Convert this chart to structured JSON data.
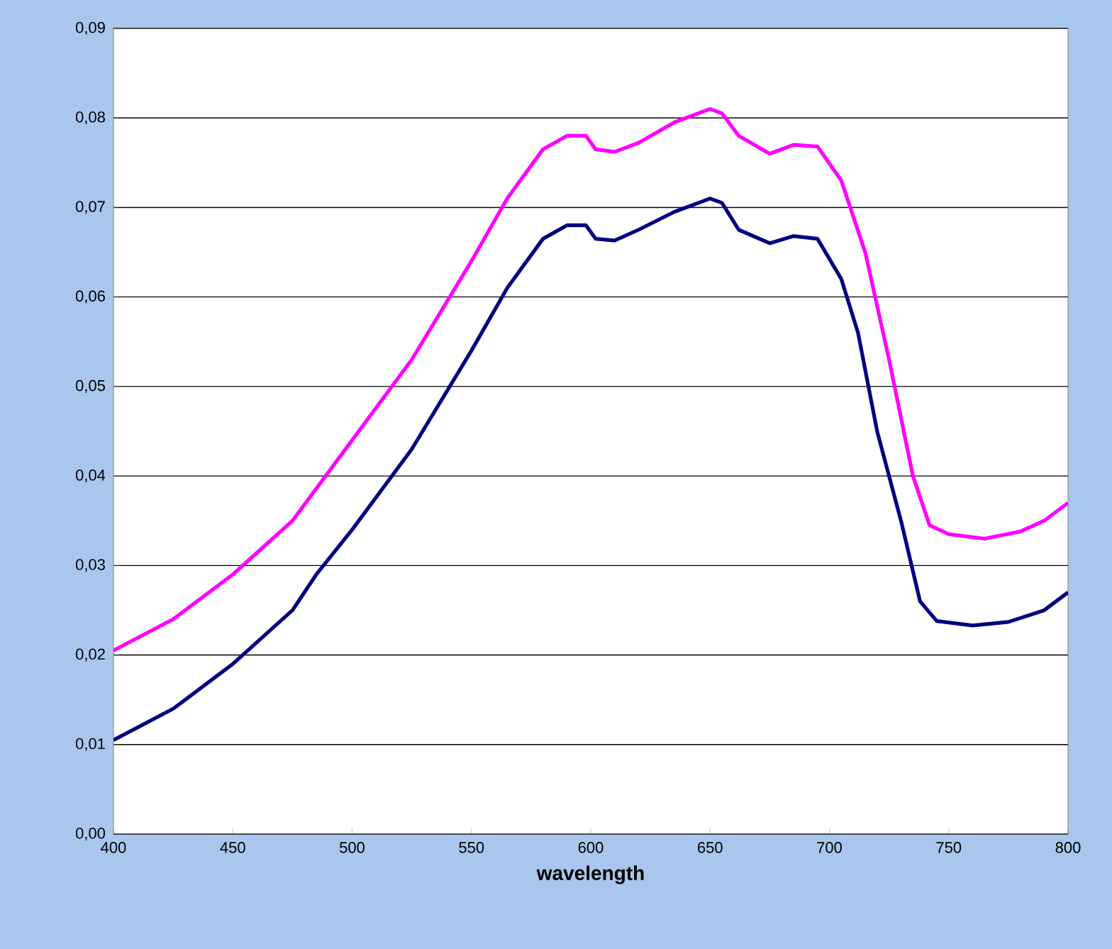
{
  "chart_data": {
    "type": "line",
    "xlabel": "**wavelength**",
    "xlim": [
      400,
      800
    ],
    "xticks": [
      400,
      450,
      500,
      550,
      600,
      650,
      700,
      750,
      800
    ],
    "ylim": [
      0,
      0.09
    ],
    "yticks": [
      {
        "value": 0,
        "label": "0,00"
      },
      {
        "value": 0.01,
        "label": "0,01"
      },
      {
        "value": 0.02,
        "label": "0,02"
      },
      {
        "value": 0.03,
        "label": "0,03"
      },
      {
        "value": 0.04,
        "label": "0,04"
      },
      {
        "value": 0.05,
        "label": "0,05"
      },
      {
        "value": 0.06,
        "label": "0,06"
      },
      {
        "value": 0.07,
        "label": "0,07"
      },
      {
        "value": 0.08,
        "label": "0,08"
      },
      {
        "value": 0.09,
        "label": "0,09"
      }
    ],
    "grid": "y",
    "marker": "none",
    "line_style": "solid",
    "series": [
      {
        "color": "#ff00ff",
        "x": [
          400,
          425,
          450,
          475,
          500,
          525,
          550,
          565,
          580,
          590,
          598,
          602,
          610,
          620,
          635,
          650,
          655,
          662,
          675,
          685,
          695,
          705,
          715,
          725,
          735,
          742,
          750,
          765,
          780,
          790,
          800
        ],
        "values": [
          0.0205,
          0.024,
          0.029,
          0.035,
          0.044,
          0.053,
          0.064,
          0.071,
          0.0765,
          0.078,
          0.078,
          0.0765,
          0.0762,
          0.0772,
          0.0795,
          0.081,
          0.0805,
          0.078,
          0.076,
          0.077,
          0.0768,
          0.073,
          0.065,
          0.053,
          0.04,
          0.0345,
          0.0335,
          0.033,
          0.0338,
          0.035,
          0.037
        ]
      },
      {
        "color": "#000080",
        "x": [
          400,
          425,
          450,
          475,
          485,
          500,
          525,
          550,
          565,
          580,
          590,
          598,
          602,
          610,
          620,
          635,
          650,
          655,
          662,
          675,
          685,
          695,
          705,
          712,
          720,
          730,
          738,
          745,
          760,
          775,
          790,
          800
        ],
        "values": [
          0.0105,
          0.014,
          0.019,
          0.025,
          0.029,
          0.034,
          0.043,
          0.054,
          0.061,
          0.0665,
          0.068,
          0.068,
          0.0665,
          0.0663,
          0.0675,
          0.0695,
          0.071,
          0.0705,
          0.0675,
          0.066,
          0.0668,
          0.0665,
          0.062,
          0.056,
          0.045,
          0.035,
          0.026,
          0.0238,
          0.0233,
          0.0237,
          0.025,
          0.027
        ]
      }
    ]
  }
}
